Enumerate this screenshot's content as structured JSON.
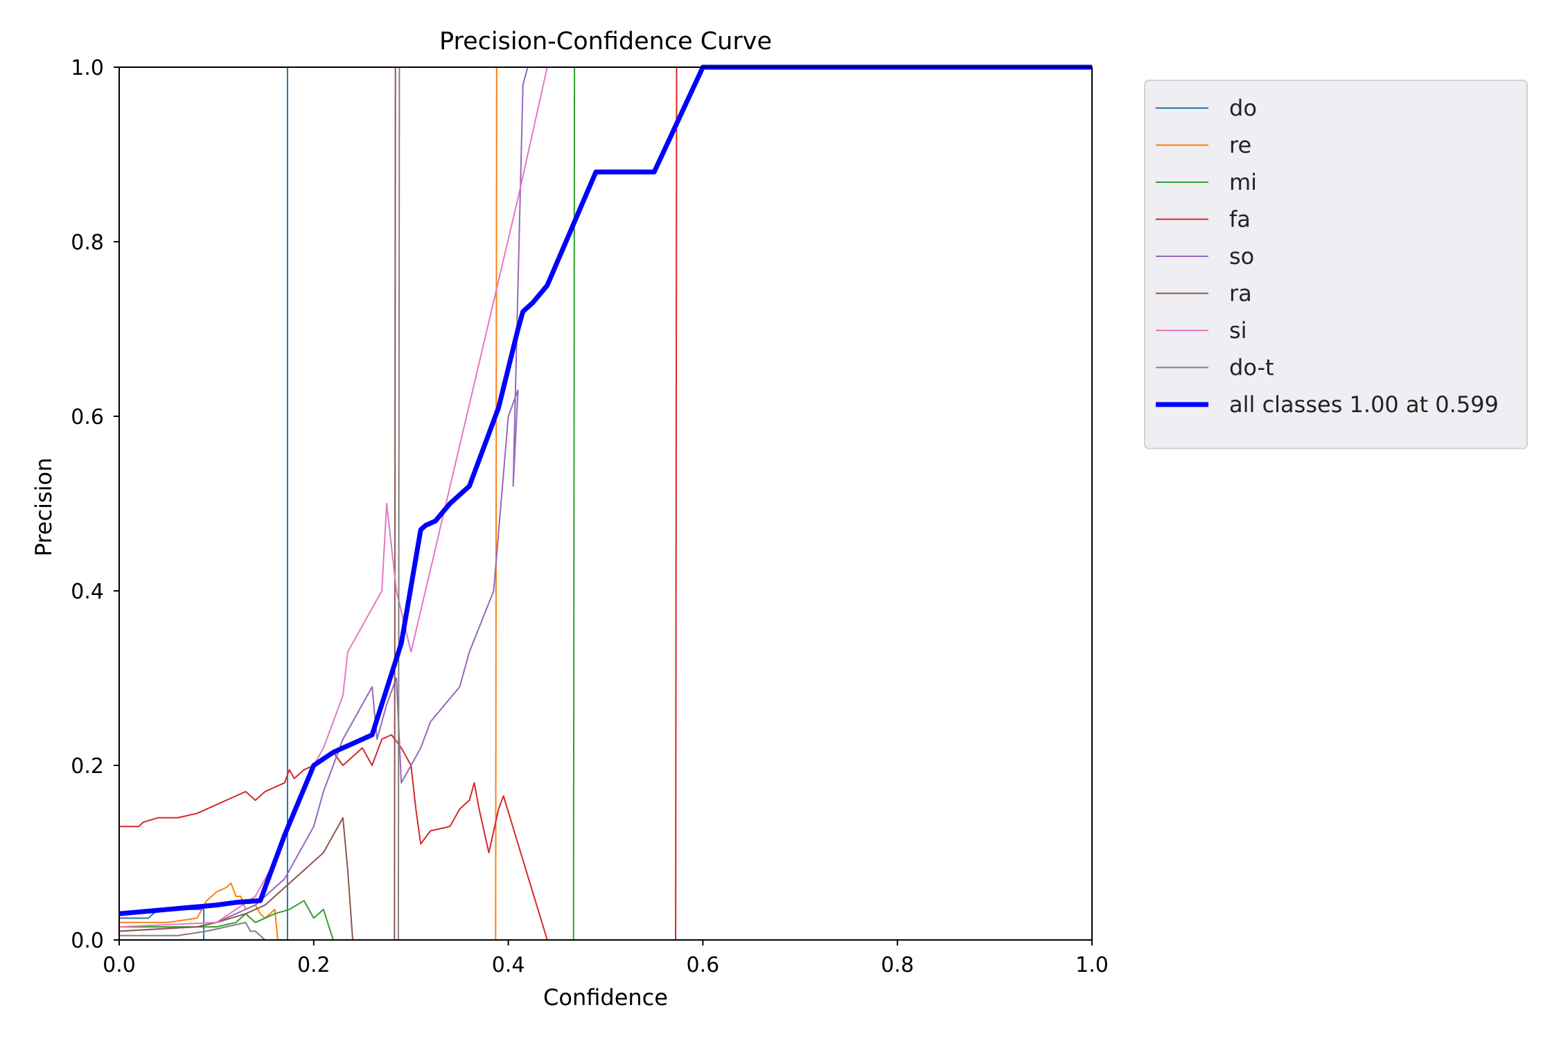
{
  "chart_data": {
    "type": "line",
    "title": "Precision-Confidence Curve",
    "xlabel": "Confidence",
    "ylabel": "Precision",
    "xlim": [
      0,
      1
    ],
    "ylim": [
      0,
      1
    ],
    "xticks": [
      "0.0",
      "0.2",
      "0.4",
      "0.6",
      "0.8",
      "1.0"
    ],
    "yticks": [
      "0.0",
      "0.2",
      "0.4",
      "0.6",
      "0.8",
      "1.0"
    ],
    "grid": false,
    "legend_position": "outside-top-right",
    "series": [
      {
        "name": "do",
        "color": "#1f77b4",
        "width": 2,
        "x": [
          0.0,
          0.03,
          0.04,
          0.06,
          0.08,
          0.087,
          0.087,
          0.17,
          0.173,
          0.173,
          1.0
        ],
        "y": [
          0.025,
          0.025,
          0.035,
          0.035,
          0.035,
          0.035,
          0.0,
          0.0,
          0.0,
          1.0,
          1.0
        ]
      },
      {
        "name": "re",
        "color": "#ff7f0e",
        "width": 2,
        "x": [
          0.0,
          0.05,
          0.08,
          0.09,
          0.1,
          0.11,
          0.115,
          0.12,
          0.125,
          0.13,
          0.14,
          0.145,
          0.15,
          0.155,
          0.16,
          0.163,
          0.163,
          0.387,
          0.388,
          1.0
        ],
        "y": [
          0.02,
          0.02,
          0.025,
          0.045,
          0.055,
          0.06,
          0.065,
          0.05,
          0.05,
          0.035,
          0.04,
          0.03,
          0.025,
          0.03,
          0.035,
          0.0,
          0.0,
          0.0,
          1.0,
          1.0
        ]
      },
      {
        "name": "mi",
        "color": "#2ca02c",
        "width": 2,
        "x": [
          0.0,
          0.1,
          0.12,
          0.13,
          0.14,
          0.15,
          0.16,
          0.175,
          0.19,
          0.2,
          0.21,
          0.22,
          0.22,
          0.467,
          0.468,
          1.0
        ],
        "y": [
          0.015,
          0.015,
          0.02,
          0.03,
          0.02,
          0.025,
          0.03,
          0.035,
          0.045,
          0.025,
          0.035,
          0.0,
          0.0,
          0.0,
          1.0,
          1.0
        ]
      },
      {
        "name": "fa",
        "color": "#d62728",
        "width": 2,
        "x": [
          0.0,
          0.02,
          0.025,
          0.04,
          0.06,
          0.08,
          0.1,
          0.12,
          0.13,
          0.14,
          0.15,
          0.16,
          0.17,
          0.175,
          0.18,
          0.19,
          0.2,
          0.21,
          0.22,
          0.23,
          0.24,
          0.25,
          0.26,
          0.27,
          0.28,
          0.29,
          0.3,
          0.305,
          0.31,
          0.32,
          0.34,
          0.35,
          0.36,
          0.365,
          0.37,
          0.38,
          0.39,
          0.395,
          0.44,
          0.572,
          0.573,
          1.0
        ],
        "y": [
          0.13,
          0.13,
          0.135,
          0.14,
          0.14,
          0.145,
          0.155,
          0.165,
          0.17,
          0.16,
          0.17,
          0.175,
          0.18,
          0.195,
          0.185,
          0.195,
          0.2,
          0.21,
          0.215,
          0.2,
          0.21,
          0.22,
          0.2,
          0.23,
          0.235,
          0.22,
          0.2,
          0.15,
          0.11,
          0.125,
          0.13,
          0.15,
          0.16,
          0.18,
          0.15,
          0.1,
          0.15,
          0.165,
          0.0,
          0.0,
          1.0,
          1.0
        ]
      },
      {
        "name": "so",
        "color": "#9467bd",
        "width": 2,
        "x": [
          0.0,
          0.08,
          0.1,
          0.12,
          0.14,
          0.16,
          0.17,
          0.18,
          0.2,
          0.21,
          0.22,
          0.23,
          0.24,
          0.25,
          0.26,
          0.265,
          0.275,
          0.285,
          0.29,
          0.3,
          0.31,
          0.32,
          0.35,
          0.36,
          0.385,
          0.4,
          0.41,
          0.405,
          0.41,
          0.415,
          0.42,
          1.0
        ],
        "y": [
          0.01,
          0.015,
          0.02,
          0.03,
          0.04,
          0.06,
          0.07,
          0.09,
          0.13,
          0.17,
          0.2,
          0.23,
          0.25,
          0.27,
          0.29,
          0.23,
          0.27,
          0.3,
          0.18,
          0.2,
          0.22,
          0.25,
          0.29,
          0.33,
          0.4,
          0.6,
          0.63,
          0.52,
          0.75,
          0.98,
          1.0,
          1.0
        ]
      },
      {
        "name": "ra",
        "color": "#8c564b",
        "width": 2,
        "x": [
          0.0,
          0.08,
          0.1,
          0.13,
          0.15,
          0.17,
          0.19,
          0.2,
          0.21,
          0.22,
          0.23,
          0.235,
          0.24,
          0.24,
          0.283,
          0.284,
          1.0
        ],
        "y": [
          0.01,
          0.015,
          0.02,
          0.03,
          0.04,
          0.06,
          0.08,
          0.09,
          0.1,
          0.12,
          0.14,
          0.08,
          0.0,
          0.0,
          0.0,
          1.0,
          1.0
        ]
      },
      {
        "name": "si",
        "color": "#e377c2",
        "width": 2,
        "x": [
          0.0,
          0.1,
          0.14,
          0.16,
          0.18,
          0.2,
          0.21,
          0.22,
          0.23,
          0.235,
          0.25,
          0.27,
          0.275,
          0.28,
          0.285,
          0.3,
          0.41,
          0.44,
          1.0
        ],
        "y": [
          0.015,
          0.02,
          0.05,
          0.09,
          0.15,
          0.2,
          0.22,
          0.25,
          0.28,
          0.33,
          0.36,
          0.4,
          0.5,
          0.45,
          0.4,
          0.33,
          0.85,
          1.0,
          1.0
        ]
      },
      {
        "name": "do-t",
        "color": "#7f7f7f",
        "width": 2,
        "x": [
          0.0,
          0.06,
          0.09,
          0.11,
          0.13,
          0.135,
          0.14,
          0.145,
          0.15,
          0.2,
          0.28,
          0.287,
          0.288,
          1.0
        ],
        "y": [
          0.005,
          0.005,
          0.01,
          0.015,
          0.02,
          0.01,
          0.01,
          0.005,
          0.0,
          0.0,
          0.0,
          0.0,
          1.0,
          1.0
        ]
      },
      {
        "name": "all classes 1.00 at 0.599",
        "color": "#0000ff",
        "width": 7,
        "x": [
          0.0,
          0.08,
          0.1,
          0.12,
          0.145,
          0.17,
          0.2,
          0.22,
          0.24,
          0.26,
          0.29,
          0.31,
          0.315,
          0.325,
          0.34,
          0.36,
          0.39,
          0.41,
          0.415,
          0.425,
          0.44,
          0.49,
          0.55,
          0.6,
          1.0
        ],
        "y": [
          0.03,
          0.038,
          0.04,
          0.043,
          0.045,
          0.12,
          0.2,
          0.215,
          0.225,
          0.235,
          0.34,
          0.47,
          0.475,
          0.48,
          0.5,
          0.52,
          0.61,
          0.7,
          0.72,
          0.73,
          0.75,
          0.88,
          0.88,
          1.0,
          1.0
        ]
      }
    ]
  }
}
